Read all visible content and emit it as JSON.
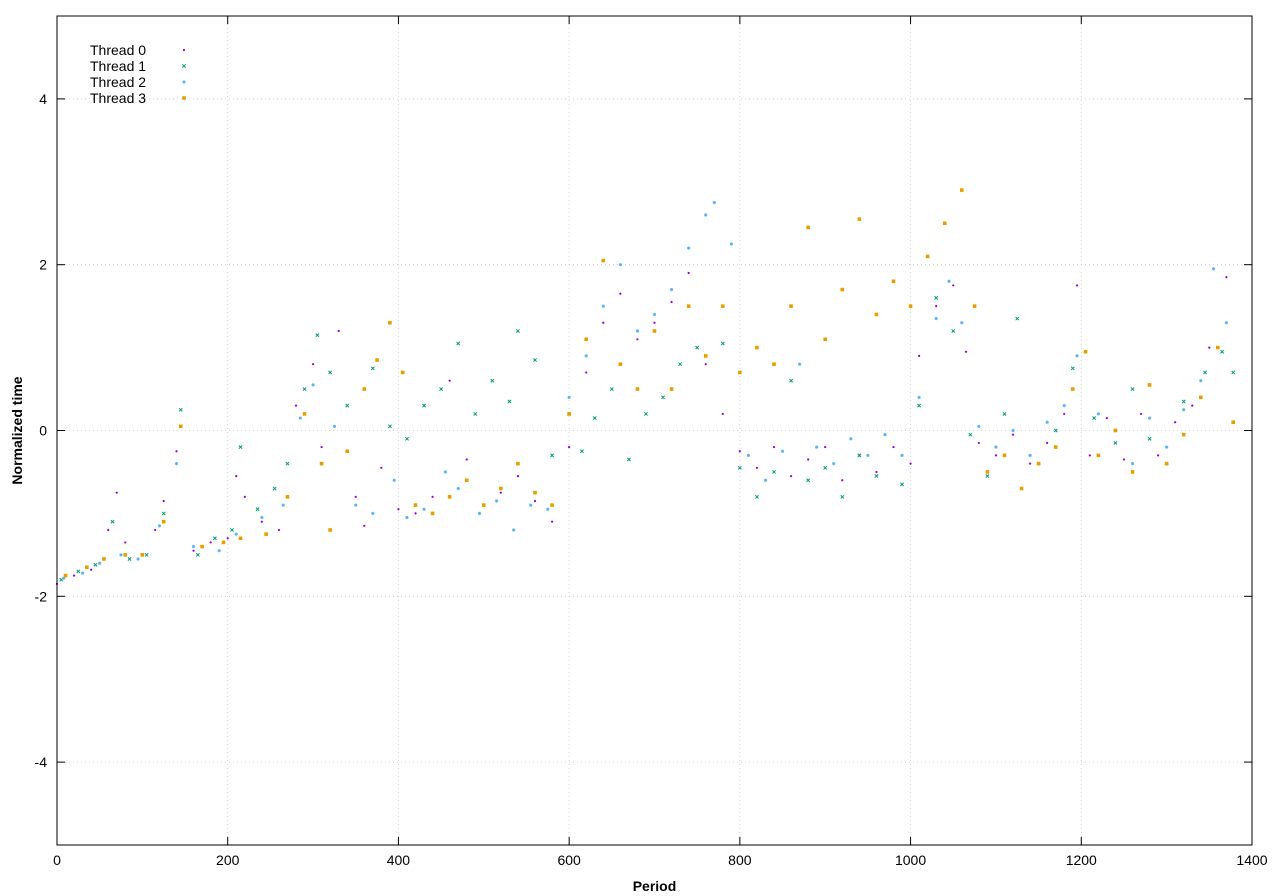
{
  "chart_data": {
    "type": "scatter",
    "title": "",
    "xlabel": "Period",
    "ylabel": "Normalized time",
    "xlim": [
      0,
      1400
    ],
    "ylim": [
      -5,
      5
    ],
    "xticks": [
      0,
      200,
      400,
      600,
      800,
      1000,
      1200,
      1400
    ],
    "yticks": [
      -4,
      -2,
      0,
      2,
      4
    ],
    "grid": true,
    "legend_position": "top-left",
    "series": [
      {
        "name": "Thread 0",
        "color": "#9400d3",
        "marker": "dot",
        "points": [
          [
            0,
            -1.85
          ],
          [
            20,
            -1.75
          ],
          [
            40,
            -1.68
          ],
          [
            60,
            -1.2
          ],
          [
            70,
            -0.75
          ],
          [
            80,
            -1.35
          ],
          [
            100,
            -1.5
          ],
          [
            115,
            -1.2
          ],
          [
            125,
            -0.85
          ],
          [
            140,
            -0.25
          ],
          [
            160,
            -1.45
          ],
          [
            180,
            -1.35
          ],
          [
            200,
            -1.3
          ],
          [
            210,
            -0.55
          ],
          [
            220,
            -0.8
          ],
          [
            240,
            -1.1
          ],
          [
            260,
            -1.2
          ],
          [
            280,
            0.3
          ],
          [
            300,
            0.8
          ],
          [
            310,
            -0.2
          ],
          [
            330,
            1.2
          ],
          [
            350,
            -0.8
          ],
          [
            360,
            -1.15
          ],
          [
            380,
            -0.45
          ],
          [
            400,
            -0.95
          ],
          [
            420,
            -1.0
          ],
          [
            440,
            -0.8
          ],
          [
            460,
            0.6
          ],
          [
            480,
            -0.35
          ],
          [
            500,
            -0.9
          ],
          [
            520,
            -0.75
          ],
          [
            540,
            -0.55
          ],
          [
            560,
            -0.85
          ],
          [
            580,
            -1.1
          ],
          [
            600,
            -0.2
          ],
          [
            620,
            0.7
          ],
          [
            640,
            1.3
          ],
          [
            660,
            1.65
          ],
          [
            680,
            1.1
          ],
          [
            700,
            1.3
          ],
          [
            720,
            1.55
          ],
          [
            740,
            1.9
          ],
          [
            760,
            0.8
          ],
          [
            780,
            0.2
          ],
          [
            800,
            -0.25
          ],
          [
            820,
            -0.45
          ],
          [
            840,
            -0.2
          ],
          [
            860,
            -0.55
          ],
          [
            880,
            -0.35
          ],
          [
            900,
            -0.2
          ],
          [
            920,
            -0.6
          ],
          [
            940,
            -0.3
          ],
          [
            960,
            -0.5
          ],
          [
            980,
            -0.2
          ],
          [
            1000,
            -0.4
          ],
          [
            1010,
            0.9
          ],
          [
            1030,
            1.5
          ],
          [
            1050,
            1.75
          ],
          [
            1065,
            0.95
          ],
          [
            1080,
            -0.15
          ],
          [
            1100,
            -0.3
          ],
          [
            1120,
            -0.05
          ],
          [
            1140,
            -0.4
          ],
          [
            1160,
            -0.15
          ],
          [
            1180,
            0.2
          ],
          [
            1195,
            1.75
          ],
          [
            1210,
            -0.3
          ],
          [
            1230,
            0.15
          ],
          [
            1250,
            -0.35
          ],
          [
            1270,
            0.2
          ],
          [
            1290,
            -0.3
          ],
          [
            1310,
            0.1
          ],
          [
            1330,
            0.3
          ],
          [
            1350,
            1.0
          ],
          [
            1370,
            1.85
          ]
        ]
      },
      {
        "name": "Thread 1",
        "color": "#009e73",
        "marker": "cross",
        "points": [
          [
            5,
            -1.8
          ],
          [
            25,
            -1.7
          ],
          [
            45,
            -1.62
          ],
          [
            65,
            -1.1
          ],
          [
            85,
            -1.55
          ],
          [
            105,
            -1.5
          ],
          [
            125,
            -1.0
          ],
          [
            145,
            0.25
          ],
          [
            165,
            -1.5
          ],
          [
            185,
            -1.3
          ],
          [
            205,
            -1.2
          ],
          [
            215,
            -0.2
          ],
          [
            235,
            -0.95
          ],
          [
            255,
            -0.7
          ],
          [
            270,
            -0.4
          ],
          [
            290,
            0.5
          ],
          [
            305,
            1.15
          ],
          [
            320,
            0.7
          ],
          [
            340,
            0.3
          ],
          [
            370,
            0.75
          ],
          [
            390,
            0.05
          ],
          [
            410,
            -0.1
          ],
          [
            430,
            0.3
          ],
          [
            450,
            0.5
          ],
          [
            470,
            1.05
          ],
          [
            490,
            0.2
          ],
          [
            510,
            0.6
          ],
          [
            530,
            0.35
          ],
          [
            540,
            1.2
          ],
          [
            560,
            0.85
          ],
          [
            580,
            -0.3
          ],
          [
            600,
            0.2
          ],
          [
            615,
            -0.25
          ],
          [
            630,
            0.15
          ],
          [
            650,
            0.5
          ],
          [
            670,
            -0.35
          ],
          [
            690,
            0.2
          ],
          [
            710,
            0.4
          ],
          [
            730,
            0.8
          ],
          [
            750,
            1.0
          ],
          [
            780,
            1.05
          ],
          [
            800,
            -0.45
          ],
          [
            820,
            -0.8
          ],
          [
            840,
            -0.5
          ],
          [
            860,
            0.6
          ],
          [
            880,
            -0.6
          ],
          [
            900,
            -0.45
          ],
          [
            920,
            -0.8
          ],
          [
            940,
            -0.3
          ],
          [
            960,
            -0.55
          ],
          [
            990,
            -0.65
          ],
          [
            1010,
            0.3
          ],
          [
            1030,
            1.6
          ],
          [
            1050,
            1.2
          ],
          [
            1070,
            -0.05
          ],
          [
            1090,
            -0.55
          ],
          [
            1110,
            0.2
          ],
          [
            1125,
            1.35
          ],
          [
            1150,
            -0.4
          ],
          [
            1170,
            0.0
          ],
          [
            1190,
            0.75
          ],
          [
            1215,
            0.15
          ],
          [
            1240,
            -0.15
          ],
          [
            1260,
            0.5
          ],
          [
            1280,
            -0.1
          ],
          [
            1300,
            -0.4
          ],
          [
            1320,
            0.35
          ],
          [
            1345,
            0.7
          ],
          [
            1365,
            0.95
          ],
          [
            1378,
            0.7
          ]
        ]
      },
      {
        "name": "Thread 2",
        "color": "#56b4e9",
        "marker": "star",
        "points": [
          [
            8,
            -1.78
          ],
          [
            30,
            -1.72
          ],
          [
            50,
            -1.6
          ],
          [
            75,
            -1.5
          ],
          [
            95,
            -1.55
          ],
          [
            120,
            -1.15
          ],
          [
            140,
            -0.4
          ],
          [
            160,
            -1.4
          ],
          [
            190,
            -1.45
          ],
          [
            210,
            -1.25
          ],
          [
            240,
            -1.05
          ],
          [
            265,
            -0.9
          ],
          [
            285,
            0.15
          ],
          [
            300,
            0.55
          ],
          [
            325,
            0.05
          ],
          [
            350,
            -0.9
          ],
          [
            370,
            -1.0
          ],
          [
            395,
            -0.6
          ],
          [
            410,
            -1.05
          ],
          [
            430,
            -0.95
          ],
          [
            455,
            -0.5
          ],
          [
            470,
            -0.7
          ],
          [
            495,
            -1.0
          ],
          [
            515,
            -0.85
          ],
          [
            535,
            -1.2
          ],
          [
            555,
            -0.9
          ],
          [
            575,
            -0.95
          ],
          [
            600,
            0.4
          ],
          [
            620,
            0.9
          ],
          [
            640,
            1.5
          ],
          [
            660,
            2.0
          ],
          [
            680,
            1.2
          ],
          [
            700,
            1.4
          ],
          [
            720,
            1.7
          ],
          [
            740,
            2.2
          ],
          [
            760,
            2.6
          ],
          [
            770,
            2.75
          ],
          [
            790,
            2.25
          ],
          [
            810,
            -0.3
          ],
          [
            830,
            -0.6
          ],
          [
            850,
            -0.25
          ],
          [
            870,
            0.8
          ],
          [
            890,
            -0.2
          ],
          [
            910,
            -0.4
          ],
          [
            930,
            -0.1
          ],
          [
            950,
            -0.3
          ],
          [
            970,
            -0.05
          ],
          [
            990,
            -0.3
          ],
          [
            1010,
            0.4
          ],
          [
            1030,
            1.35
          ],
          [
            1045,
            1.8
          ],
          [
            1060,
            1.3
          ],
          [
            1080,
            0.05
          ],
          [
            1100,
            -0.2
          ],
          [
            1120,
            0.0
          ],
          [
            1140,
            -0.3
          ],
          [
            1160,
            0.1
          ],
          [
            1180,
            0.3
          ],
          [
            1195,
            0.9
          ],
          [
            1220,
            0.2
          ],
          [
            1240,
            0.0
          ],
          [
            1260,
            -0.4
          ],
          [
            1280,
            0.15
          ],
          [
            1300,
            -0.2
          ],
          [
            1320,
            0.25
          ],
          [
            1340,
            0.6
          ],
          [
            1355,
            1.95
          ],
          [
            1370,
            1.3
          ]
        ]
      },
      {
        "name": "Thread 3",
        "color": "#e69f00",
        "marker": "square",
        "points": [
          [
            10,
            -1.75
          ],
          [
            35,
            -1.65
          ],
          [
            55,
            -1.55
          ],
          [
            80,
            -1.5
          ],
          [
            100,
            -1.5
          ],
          [
            125,
            -1.1
          ],
          [
            145,
            0.05
          ],
          [
            170,
            -1.4
          ],
          [
            195,
            -1.35
          ],
          [
            215,
            -1.3
          ],
          [
            245,
            -1.25
          ],
          [
            270,
            -0.8
          ],
          [
            290,
            0.2
          ],
          [
            310,
            -0.4
          ],
          [
            320,
            -1.2
          ],
          [
            340,
            -0.25
          ],
          [
            360,
            0.5
          ],
          [
            375,
            0.85
          ],
          [
            390,
            1.3
          ],
          [
            405,
            0.7
          ],
          [
            420,
            -0.9
          ],
          [
            440,
            -1.0
          ],
          [
            460,
            -0.8
          ],
          [
            480,
            -0.6
          ],
          [
            500,
            -0.9
          ],
          [
            520,
            -0.7
          ],
          [
            540,
            -0.4
          ],
          [
            560,
            -0.75
          ],
          [
            580,
            -0.9
          ],
          [
            600,
            0.2
          ],
          [
            620,
            1.1
          ],
          [
            640,
            2.05
          ],
          [
            660,
            0.8
          ],
          [
            680,
            0.5
          ],
          [
            700,
            1.2
          ],
          [
            720,
            0.5
          ],
          [
            740,
            1.5
          ],
          [
            760,
            0.9
          ],
          [
            780,
            1.5
          ],
          [
            800,
            0.7
          ],
          [
            820,
            1.0
          ],
          [
            840,
            0.8
          ],
          [
            860,
            1.5
          ],
          [
            880,
            2.45
          ],
          [
            900,
            1.1
          ],
          [
            920,
            1.7
          ],
          [
            940,
            2.55
          ],
          [
            960,
            1.4
          ],
          [
            980,
            1.8
          ],
          [
            1000,
            1.5
          ],
          [
            1020,
            2.1
          ],
          [
            1040,
            2.5
          ],
          [
            1060,
            2.9
          ],
          [
            1075,
            1.5
          ],
          [
            1090,
            -0.5
          ],
          [
            1110,
            -0.3
          ],
          [
            1130,
            -0.7
          ],
          [
            1150,
            -0.4
          ],
          [
            1170,
            -0.2
          ],
          [
            1190,
            0.5
          ],
          [
            1205,
            0.95
          ],
          [
            1220,
            -0.3
          ],
          [
            1240,
            0.0
          ],
          [
            1260,
            -0.5
          ],
          [
            1280,
            0.55
          ],
          [
            1300,
            -0.4
          ],
          [
            1320,
            -0.05
          ],
          [
            1340,
            0.4
          ],
          [
            1360,
            1.0
          ],
          [
            1378,
            0.1
          ]
        ]
      }
    ]
  }
}
